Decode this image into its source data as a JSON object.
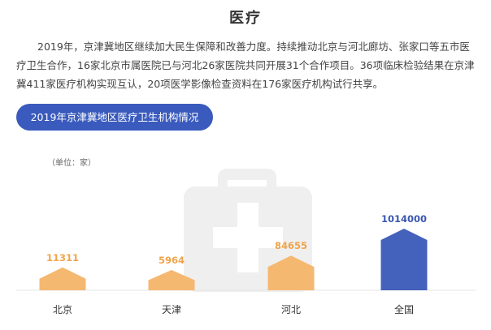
{
  "page": {
    "title": "医疗",
    "paragraph": "2019年，京津冀地区继续加大民生保障和改善力度。持续推动北京与河北廊坊、张家口等五市医疗卫生合作，16家北京市属医院已与河北26家医院共同开展31个合作项目。36项临床检验结果在京津冀411家医疗机构实现互认，20项医学影像检查资料在176家医疗机构试行共享。",
    "chart_heading": "2019年京津冀地区医疗卫生机构情况",
    "unit_label": "（单位：家）"
  },
  "chart_data": {
    "type": "bar",
    "title": "2019年京津冀地区医疗卫生机构情况",
    "unit": "家",
    "categories": [
      "北京",
      "天津",
      "河北",
      "全国"
    ],
    "values": [
      11311,
      5964,
      84655,
      1014000
    ],
    "value_labels": [
      "11311",
      "5964",
      "84655",
      "1014000"
    ],
    "colors": [
      "#f5b870",
      "#f5b870",
      "#f5b870",
      "#4461bb"
    ],
    "label_colors": [
      "#f0a34a",
      "#f0a34a",
      "#f0a34a",
      "#3a56b0"
    ],
    "background_icon": "medical-kit-icon",
    "scale": "non-linear (visual only)"
  }
}
